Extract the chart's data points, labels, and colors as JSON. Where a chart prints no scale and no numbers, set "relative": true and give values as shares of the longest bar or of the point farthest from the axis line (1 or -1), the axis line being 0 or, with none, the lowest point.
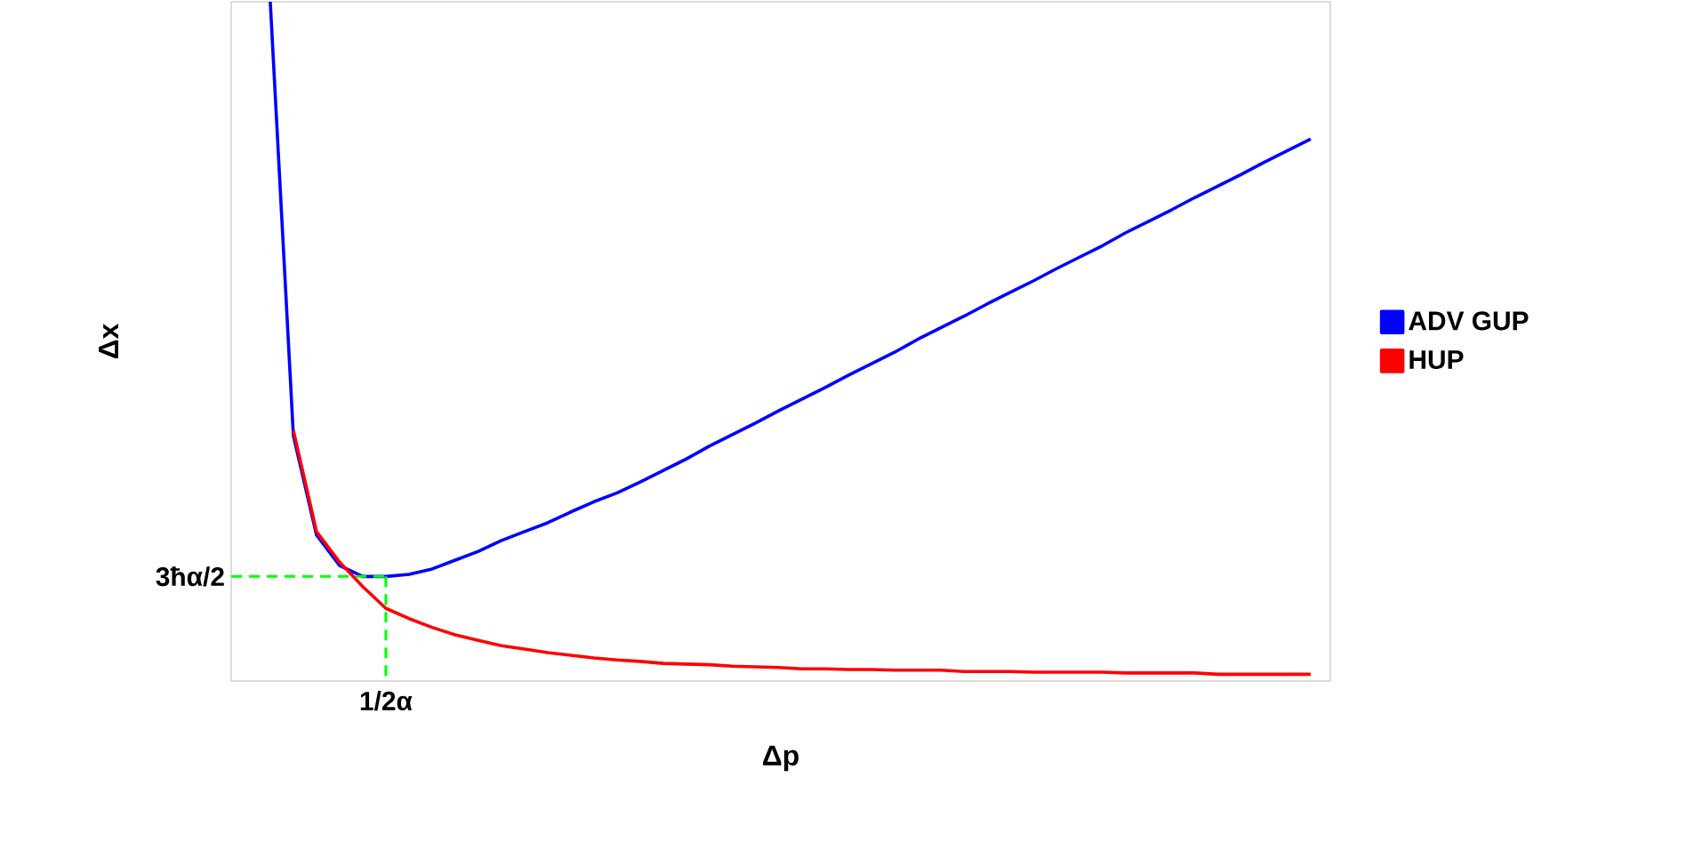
{
  "chart_data": {
    "type": "line",
    "xlabel": "Δp",
    "ylabel": "Δx",
    "relative": true,
    "categories": [
      null,
      null,
      null,
      null,
      null,
      null,
      null,
      null,
      null,
      null,
      null,
      null,
      null,
      null,
      null,
      null,
      null,
      null,
      null,
      null,
      null,
      null,
      null,
      null,
      null,
      null,
      null,
      null,
      null,
      null,
      null,
      null,
      null,
      null,
      null,
      null,
      null,
      null,
      null,
      null,
      null,
      null,
      null,
      null,
      null,
      null
    ],
    "legend": "right",
    "annotations": [
      "3ħα/2",
      "1/2α"
    ],
    "series": [
      {
        "name": "ADV GUP",
        "color": "#0000ff",
        "values": [
          1.0,
          0.361,
          0.215,
          0.17,
          0.154,
          0.154,
          0.157,
          0.165,
          0.178,
          0.191,
          0.207,
          0.22,
          0.233,
          0.249,
          0.264,
          0.277,
          0.293,
          0.31,
          0.327,
          0.346,
          0.363,
          0.38,
          0.398,
          0.415,
          0.432,
          0.45,
          0.467,
          0.484,
          0.503,
          0.52,
          0.537,
          0.555,
          0.572,
          0.589,
          0.607,
          0.624,
          0.641,
          0.66,
          0.677,
          0.694,
          0.712,
          0.729,
          0.746,
          0.764,
          0.781,
          0.798
        ]
      },
      {
        "name": "HUP",
        "color": "#ff0000",
        "values": [
          null,
          0.369,
          0.22,
          0.175,
          0.139,
          0.107,
          0.092,
          0.079,
          0.068,
          0.06,
          0.052,
          0.047,
          0.042,
          0.038,
          0.034,
          0.031,
          0.029,
          0.026,
          0.025,
          0.024,
          0.022,
          0.021,
          0.02,
          0.018,
          0.018,
          0.017,
          0.017,
          0.016,
          0.016,
          0.016,
          0.014,
          0.014,
          0.014,
          0.013,
          0.013,
          0.013,
          0.013,
          0.012,
          0.012,
          0.012,
          0.012,
          0.01,
          0.01,
          0.01,
          0.01,
          0.01
        ]
      }
    ]
  }
}
